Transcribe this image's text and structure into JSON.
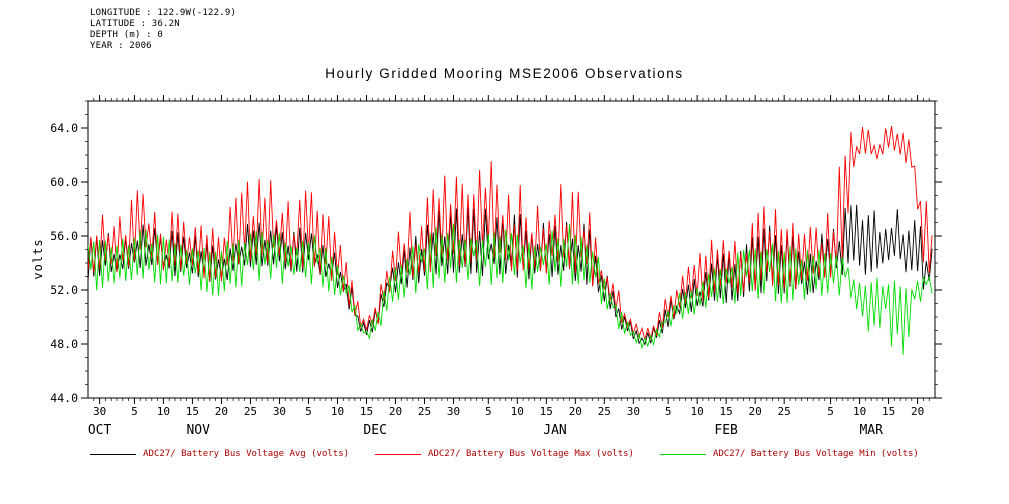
{
  "header": {
    "meta_lines": [
      "LONGITUDE : 122.9W(-122.9)",
      "LATITUDE : 36.2N",
      "DEPTH (m) : 0",
      "YEAR : 2006"
    ],
    "title": "Hourly Gridded Mooring MSE2006 Observations"
  },
  "legend": {
    "text_color": "#aa0000",
    "items": [
      {
        "label": "ADC27/ Battery Bus Voltage Avg (volts)"
      },
      {
        "label": "ADC27/ Battery Bus Voltage Max (volts)"
      },
      {
        "label": "ADC27/ Battery Bus Voltage Min (volts)"
      }
    ]
  },
  "chart_data": {
    "type": "line",
    "title": "Hourly Gridded Mooring MSE2006 Observations",
    "xlabel": "",
    "ylabel": "volts",
    "x_unit": "days since 2006-10-28 (axis runs Oct 2006 - Mar 2007)",
    "xlim": [
      0,
      146
    ],
    "ylim": [
      44.0,
      66.0
    ],
    "grid": false,
    "legend_position": "bottom",
    "yticks": {
      "values": [
        44,
        48,
        52,
        56,
        60,
        64
      ],
      "labels": [
        "44.0",
        "48.0",
        "52.0",
        "56.0",
        "60.0",
        "64.0"
      ],
      "minor_step": 1
    },
    "xticks": {
      "minor_step_days": 1,
      "major": [
        {
          "d": 2,
          "t": "30"
        },
        {
          "d": 8,
          "t": "5"
        },
        {
          "d": 13,
          "t": "10"
        },
        {
          "d": 18,
          "t": "15"
        },
        {
          "d": 23,
          "t": "20"
        },
        {
          "d": 28,
          "t": "25"
        },
        {
          "d": 33,
          "t": "30"
        },
        {
          "d": 38,
          "t": "5"
        },
        {
          "d": 43,
          "t": "10"
        },
        {
          "d": 48,
          "t": "15"
        },
        {
          "d": 53,
          "t": "20"
        },
        {
          "d": 58,
          "t": "25"
        },
        {
          "d": 63,
          "t": "30"
        },
        {
          "d": 69,
          "t": "5"
        },
        {
          "d": 74,
          "t": "10"
        },
        {
          "d": 79,
          "t": "15"
        },
        {
          "d": 84,
          "t": "20"
        },
        {
          "d": 89,
          "t": "25"
        },
        {
          "d": 94,
          "t": "30"
        },
        {
          "d": 100,
          "t": "5"
        },
        {
          "d": 105,
          "t": "10"
        },
        {
          "d": 110,
          "t": "15"
        },
        {
          "d": 115,
          "t": "20"
        },
        {
          "d": 120,
          "t": "25"
        },
        {
          "d": 128,
          "t": "5"
        },
        {
          "d": 133,
          "t": "10"
        },
        {
          "d": 138,
          "t": "15"
        },
        {
          "d": 143,
          "t": "20"
        }
      ]
    },
    "months": [
      {
        "label": "OCT",
        "start": 0,
        "end": 4
      },
      {
        "label": "NOV",
        "start": 4,
        "end": 34
      },
      {
        "label": "DEC",
        "start": 34,
        "end": 65
      },
      {
        "label": "JAN",
        "start": 65,
        "end": 96
      },
      {
        "label": "FEB",
        "start": 96,
        "end": 124
      },
      {
        "label": "MAR",
        "start": 124,
        "end": 146
      }
    ],
    "sampling_note": "values hand-read from plot as daily envelope knots; each hourly series oscillates between lo and hi",
    "knot_days": [
      0,
      2,
      5,
      8,
      10,
      13,
      16,
      19,
      22,
      25,
      27,
      30,
      33,
      36,
      38,
      41,
      43,
      45,
      47,
      48,
      50,
      52,
      55,
      58,
      60,
      63,
      66,
      69,
      72,
      74,
      77,
      80,
      83,
      85,
      88,
      90,
      92,
      94,
      96,
      98,
      100,
      102,
      105,
      108,
      111,
      114,
      117,
      120,
      123,
      126,
      128,
      130,
      132,
      134,
      136,
      138,
      140,
      142,
      144,
      146
    ],
    "series": [
      {
        "name": "ADC27/ Battery Bus Voltage Avg (volts)",
        "color": "#000000",
        "spike": "up",
        "lo": [
          52.5,
          53.0,
          53.0,
          53.5,
          53.5,
          53.0,
          53.0,
          52.5,
          52.0,
          53.0,
          53.5,
          53.5,
          53.5,
          53.0,
          53.5,
          52.5,
          52.0,
          50.5,
          48.8,
          48.5,
          49.0,
          51.5,
          52.0,
          52.5,
          53.0,
          53.0,
          53.0,
          53.0,
          52.8,
          52.8,
          52.5,
          52.8,
          52.8,
          52.5,
          51.5,
          50.5,
          49.0,
          48.2,
          47.8,
          48.2,
          49.2,
          50.0,
          50.5,
          51.0,
          51.0,
          51.2,
          51.5,
          51.5,
          51.5,
          51.8,
          52.0,
          52.5,
          53.0,
          53.0,
          53.5,
          53.5,
          53.5,
          53.0,
          51.8,
          51.5
        ],
        "hi": [
          56.5,
          56.5,
          56.0,
          57.0,
          57.0,
          56.5,
          56.3,
          56.0,
          55.5,
          56.5,
          57.0,
          57.0,
          57.0,
          56.5,
          57.0,
          56.0,
          55.0,
          53.0,
          50.0,
          49.4,
          51.0,
          54.0,
          55.5,
          56.5,
          58.0,
          58.5,
          58.0,
          58.5,
          57.5,
          58.0,
          56.5,
          57.5,
          59.0,
          58.0,
          55.0,
          52.5,
          51.0,
          49.3,
          48.8,
          49.5,
          51.0,
          52.2,
          53.0,
          54.5,
          55.0,
          56.0,
          57.0,
          56.5,
          55.5,
          56.0,
          57.5,
          58.0,
          58.5,
          58.0,
          58.0,
          58.0,
          58.0,
          57.5,
          56.5,
          56.0
        ]
      },
      {
        "name": "ADC27/ Battery Bus Voltage Max (volts)",
        "color": "#ff0000",
        "spike": "up",
        "lo": [
          53.0,
          53.3,
          53.3,
          53.8,
          53.8,
          53.3,
          53.3,
          52.8,
          52.3,
          53.3,
          53.8,
          53.8,
          53.8,
          53.3,
          53.8,
          52.8,
          52.3,
          50.8,
          49.1,
          48.8,
          49.3,
          51.8,
          52.3,
          52.8,
          53.3,
          53.3,
          53.3,
          53.3,
          53.1,
          53.1,
          52.8,
          53.1,
          53.1,
          52.8,
          51.8,
          50.8,
          49.3,
          48.5,
          48.1,
          48.5,
          49.5,
          50.3,
          50.8,
          51.3,
          51.3,
          51.5,
          51.8,
          51.8,
          51.8,
          52.1,
          52.3,
          54.0,
          61.0,
          62.0,
          61.5,
          62.0,
          62.0,
          60.5,
          54.0,
          52.5
        ],
        "hi": [
          57.5,
          58.0,
          57.0,
          59.8,
          59.5,
          58.5,
          57.5,
          57.0,
          56.5,
          58.5,
          60.0,
          60.3,
          60.0,
          58.5,
          60.2,
          58.0,
          56.0,
          53.5,
          50.5,
          49.8,
          51.5,
          55.5,
          57.5,
          59.5,
          61.5,
          60.5,
          60.0,
          62.0,
          59.5,
          60.5,
          58.0,
          59.5,
          60.5,
          59.5,
          56.0,
          53.5,
          51.5,
          49.8,
          49.2,
          50.0,
          51.8,
          53.0,
          54.5,
          56.0,
          56.5,
          57.5,
          58.5,
          57.5,
          56.5,
          57.0,
          58.5,
          62.0,
          64.3,
          64.0,
          63.5,
          64.2,
          64.0,
          63.0,
          60.0,
          58.0
        ]
      },
      {
        "name": "ADC27/ Battery Bus Voltage Min (volts)",
        "color": "#00dd00",
        "spike": "down",
        "lo": [
          51.8,
          52.0,
          52.5,
          52.5,
          52.8,
          52.3,
          52.5,
          52.0,
          51.5,
          52.0,
          52.0,
          52.2,
          52.5,
          52.3,
          52.5,
          52.0,
          51.5,
          50.2,
          48.5,
          48.3,
          48.8,
          51.0,
          51.5,
          52.0,
          52.2,
          52.3,
          52.3,
          52.2,
          52.0,
          52.2,
          52.0,
          52.2,
          52.2,
          52.0,
          51.2,
          50.0,
          48.8,
          48.0,
          47.6,
          48.0,
          49.0,
          49.8,
          50.2,
          50.6,
          50.8,
          51.0,
          51.0,
          51.0,
          51.2,
          51.5,
          51.8,
          51.5,
          50.5,
          48.5,
          49.5,
          47.5,
          46.5,
          49.0,
          51.5,
          51.8
        ],
        "hi": [
          56.0,
          56.0,
          55.5,
          56.5,
          56.5,
          56.0,
          55.8,
          55.5,
          55.0,
          56.0,
          56.5,
          56.5,
          56.5,
          56.0,
          56.5,
          55.5,
          54.5,
          52.5,
          49.6,
          49.1,
          50.6,
          53.6,
          55.0,
          56.0,
          57.0,
          57.0,
          56.5,
          56.5,
          56.5,
          56.5,
          56.0,
          56.5,
          57.0,
          56.5,
          54.5,
          52.0,
          50.6,
          49.0,
          48.5,
          49.2,
          50.6,
          51.8,
          52.6,
          54.0,
          54.5,
          55.5,
          56.0,
          55.5,
          55.0,
          55.0,
          55.5,
          55.0,
          53.5,
          53.0,
          53.0,
          53.0,
          53.0,
          53.0,
          53.0,
          53.5
        ]
      }
    ]
  }
}
